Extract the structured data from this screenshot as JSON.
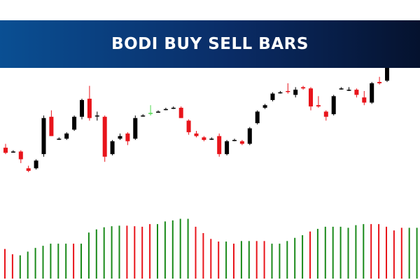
{
  "banner": {
    "title": "BODI BUY SELL BARS"
  },
  "colors": {
    "bull": "#000000",
    "bear": "#e8141b",
    "doji": "#000000",
    "neutral": "#4fd84f",
    "histogram_buy": "#1a8a1a",
    "histogram_sell": "#e8141b",
    "banner_start": "#0a4f93",
    "banner_end": "#05122e"
  },
  "chart_data": {
    "type": "candlestick",
    "title": "BODI BUY SELL BARS",
    "xlabel": "",
    "ylabel": "",
    "grid": false,
    "ylim": [
      0,
      100
    ],
    "candles": [
      {
        "o": 31,
        "h": 34,
        "l": 26,
        "c": 27,
        "t": "bear"
      },
      {
        "o": 28,
        "h": 29,
        "l": 27,
        "c": 28,
        "t": "doji"
      },
      {
        "o": 28,
        "h": 29,
        "l": 19,
        "c": 22,
        "t": "bear"
      },
      {
        "o": 15,
        "h": 17,
        "l": 12,
        "c": 13,
        "t": "bear"
      },
      {
        "o": 15,
        "h": 22,
        "l": 14,
        "c": 21,
        "t": "bull"
      },
      {
        "o": 26,
        "h": 56,
        "l": 24,
        "c": 54,
        "t": "bull"
      },
      {
        "o": 55,
        "h": 60,
        "l": 40,
        "c": 40,
        "t": "bear"
      },
      {
        "o": 38,
        "h": 39,
        "l": 37,
        "c": 38,
        "t": "doji"
      },
      {
        "o": 38,
        "h": 43,
        "l": 37,
        "c": 42,
        "t": "bull"
      },
      {
        "o": 45,
        "h": 56,
        "l": 44,
        "c": 55,
        "t": "bull"
      },
      {
        "o": 55,
        "h": 69,
        "l": 53,
        "c": 68,
        "t": "bull"
      },
      {
        "o": 69,
        "h": 79,
        "l": 52,
        "c": 54,
        "t": "bear"
      },
      {
        "o": 56,
        "h": 59,
        "l": 52,
        "c": 56,
        "t": "doji"
      },
      {
        "o": 55,
        "h": 56,
        "l": 20,
        "c": 24,
        "t": "bear"
      },
      {
        "o": 26,
        "h": 37,
        "l": 25,
        "c": 36,
        "t": "bull"
      },
      {
        "o": 38,
        "h": 42,
        "l": 37,
        "c": 40,
        "t": "bull"
      },
      {
        "o": 42,
        "h": 43,
        "l": 33,
        "c": 36,
        "t": "bear"
      },
      {
        "o": 38,
        "h": 56,
        "l": 37,
        "c": 54,
        "t": "bull"
      },
      {
        "o": 56,
        "h": 57,
        "l": 55,
        "c": 56,
        "t": "doji"
      },
      {
        "o": 58,
        "h": 64,
        "l": 56,
        "c": 58,
        "t": "neutral"
      },
      {
        "o": 59,
        "h": 60,
        "l": 58,
        "c": 59,
        "t": "doji"
      },
      {
        "o": 61,
        "h": 62,
        "l": 60,
        "c": 61,
        "t": "doji"
      },
      {
        "o": 62,
        "h": 63,
        "l": 61,
        "c": 62,
        "t": "doji"
      },
      {
        "o": 62,
        "h": 63,
        "l": 54,
        "c": 54,
        "t": "bear"
      },
      {
        "o": 52,
        "h": 53,
        "l": 41,
        "c": 43,
        "t": "bear"
      },
      {
        "o": 42,
        "h": 44,
        "l": 39,
        "c": 40,
        "t": "bear"
      },
      {
        "o": 39,
        "h": 40,
        "l": 36,
        "c": 37,
        "t": "bear"
      },
      {
        "o": 38,
        "h": 39,
        "l": 37,
        "c": 38,
        "t": "doji"
      },
      {
        "o": 40,
        "h": 42,
        "l": 24,
        "c": 26,
        "t": "bear"
      },
      {
        "o": 26,
        "h": 37,
        "l": 25,
        "c": 36,
        "t": "bull"
      },
      {
        "o": 37,
        "h": 38,
        "l": 36,
        "c": 37,
        "t": "doji"
      },
      {
        "o": 36,
        "h": 37,
        "l": 33,
        "c": 34,
        "t": "bear"
      },
      {
        "o": 34,
        "h": 47,
        "l": 33,
        "c": 46,
        "t": "bull"
      },
      {
        "o": 50,
        "h": 60,
        "l": 49,
        "c": 59,
        "t": "bull"
      },
      {
        "o": 62,
        "h": 65,
        "l": 61,
        "c": 64,
        "t": "bull"
      },
      {
        "o": 68,
        "h": 74,
        "l": 67,
        "c": 73,
        "t": "bull"
      },
      {
        "o": 74,
        "h": 75,
        "l": 73,
        "c": 74,
        "t": "doji"
      },
      {
        "o": 75,
        "h": 81,
        "l": 73,
        "c": 75,
        "t": "bear"
      },
      {
        "o": 72,
        "h": 78,
        "l": 70,
        "c": 76,
        "t": "bull"
      },
      {
        "o": 77,
        "h": 79,
        "l": 76,
        "c": 78,
        "t": "bear"
      },
      {
        "o": 77,
        "h": 78,
        "l": 60,
        "c": 63,
        "t": "bear"
      },
      {
        "o": 64,
        "h": 71,
        "l": 62,
        "c": 63,
        "t": "bear"
      },
      {
        "o": 59,
        "h": 60,
        "l": 52,
        "c": 55,
        "t": "bear"
      },
      {
        "o": 57,
        "h": 72,
        "l": 56,
        "c": 71,
        "t": "bull"
      },
      {
        "o": 77,
        "h": 78,
        "l": 76,
        "c": 77,
        "t": "doji"
      },
      {
        "o": 76,
        "h": 78,
        "l": 75,
        "c": 76,
        "t": "doji"
      },
      {
        "o": 76,
        "h": 77,
        "l": 70,
        "c": 72,
        "t": "bear"
      },
      {
        "o": 70,
        "h": 75,
        "l": 64,
        "c": 66,
        "t": "bear"
      },
      {
        "o": 66,
        "h": 82,
        "l": 65,
        "c": 81,
        "t": "bull"
      },
      {
        "o": 82,
        "h": 86,
        "l": 80,
        "c": 81,
        "t": "bear"
      },
      {
        "o": 83,
        "h": 99,
        "l": 82,
        "c": 98,
        "t": "bull"
      },
      {
        "o": 98,
        "h": 102,
        "l": 97,
        "c": 101,
        "t": "bull"
      }
    ],
    "histogram": {
      "range": [
        0,
        100
      ],
      "bars": [
        {
          "v": 56,
          "s": "sell"
        },
        {
          "v": 46,
          "s": "sell"
        },
        {
          "v": 44,
          "s": "buy"
        },
        {
          "v": 51,
          "s": "buy"
        },
        {
          "v": 58,
          "s": "buy"
        },
        {
          "v": 62,
          "s": "buy"
        },
        {
          "v": 66,
          "s": "buy"
        },
        {
          "v": 66,
          "s": "buy"
        },
        {
          "v": 66,
          "s": "buy"
        },
        {
          "v": 66,
          "s": "sell"
        },
        {
          "v": 66,
          "s": "buy"
        },
        {
          "v": 87,
          "s": "buy"
        },
        {
          "v": 93,
          "s": "buy"
        },
        {
          "v": 97,
          "s": "buy"
        },
        {
          "v": 99,
          "s": "buy"
        },
        {
          "v": 100,
          "s": "buy"
        },
        {
          "v": 100,
          "s": "sell"
        },
        {
          "v": 99,
          "s": "sell"
        },
        {
          "v": 98,
          "s": "sell"
        },
        {
          "v": 103,
          "s": "sell"
        },
        {
          "v": 103,
          "s": "buy"
        },
        {
          "v": 108,
          "s": "buy"
        },
        {
          "v": 110,
          "s": "buy"
        },
        {
          "v": 113,
          "s": "buy"
        },
        {
          "v": 113,
          "s": "buy"
        },
        {
          "v": 98,
          "s": "sell"
        },
        {
          "v": 86,
          "s": "sell"
        },
        {
          "v": 75,
          "s": "sell"
        },
        {
          "v": 70,
          "s": "sell"
        },
        {
          "v": 70,
          "s": "buy"
        },
        {
          "v": 66,
          "s": "sell"
        },
        {
          "v": 71,
          "s": "buy"
        },
        {
          "v": 71,
          "s": "buy"
        },
        {
          "v": 71,
          "s": "sell"
        },
        {
          "v": 71,
          "s": "sell"
        },
        {
          "v": 66,
          "s": "buy"
        },
        {
          "v": 66,
          "s": "buy"
        },
        {
          "v": 71,
          "s": "buy"
        },
        {
          "v": 77,
          "s": "buy"
        },
        {
          "v": 82,
          "s": "buy"
        },
        {
          "v": 89,
          "s": "sell"
        },
        {
          "v": 94,
          "s": "buy"
        },
        {
          "v": 98,
          "s": "buy"
        },
        {
          "v": 98,
          "s": "buy"
        },
        {
          "v": 98,
          "s": "buy"
        },
        {
          "v": 96,
          "s": "buy"
        },
        {
          "v": 101,
          "s": "buy"
        },
        {
          "v": 103,
          "s": "buy"
        },
        {
          "v": 103,
          "s": "sell"
        },
        {
          "v": 103,
          "s": "sell"
        },
        {
          "v": 98,
          "s": "sell"
        },
        {
          "v": 91,
          "s": "sell"
        },
        {
          "v": 96,
          "s": "sell"
        },
        {
          "v": 96,
          "s": "buy"
        },
        {
          "v": 96,
          "s": "buy"
        }
      ]
    }
  }
}
